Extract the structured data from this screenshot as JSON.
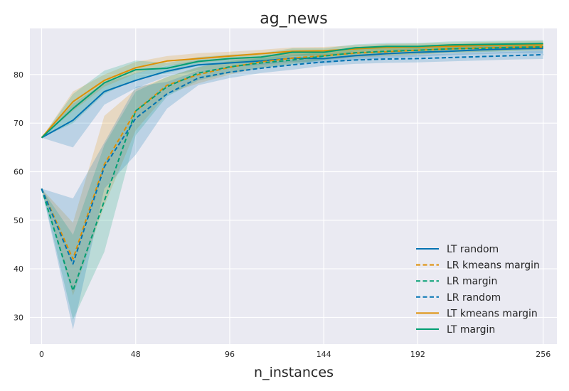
{
  "chart_data": {
    "type": "line",
    "title": "ag_news",
    "xlabel": "n_instances",
    "ylabel": "",
    "xlim": [
      -6,
      263
    ],
    "ylim": [
      24.5,
      89.5
    ],
    "xticks": [
      0,
      48,
      96,
      144,
      192,
      256
    ],
    "yticks": [
      30,
      40,
      50,
      60,
      70,
      80
    ],
    "grid": true,
    "legend_position": "lower-right",
    "x": [
      0,
      16,
      32,
      48,
      64,
      80,
      96,
      112,
      128,
      144,
      160,
      176,
      192,
      208,
      224,
      240,
      256
    ],
    "series": [
      {
        "name": "LT random",
        "color": "#0173b2",
        "dashed": false,
        "values": [
          67.0,
          70.6,
          76.5,
          78.8,
          80.7,
          82.0,
          82.4,
          82.8,
          83.4,
          83.3,
          83.9,
          84.3,
          84.6,
          84.8,
          85.1,
          85.3,
          85.4
        ],
        "band_low": [
          67.0,
          65.0,
          73.8,
          77.2,
          79.6,
          80.9,
          81.5,
          82.0,
          82.6,
          82.3,
          83.0,
          83.4,
          83.7,
          84.0,
          84.2,
          84.4,
          84.3
        ],
        "band_high": [
          67.0,
          74.0,
          78.3,
          80.3,
          81.8,
          83.0,
          83.3,
          83.7,
          84.3,
          84.2,
          84.8,
          85.1,
          85.4,
          85.6,
          85.9,
          86.1,
          86.3
        ]
      },
      {
        "name": "LR kmeans margin",
        "color": "#de8f05",
        "dashed": true,
        "values": [
          56.5,
          42.0,
          61.5,
          72.5,
          77.8,
          80.0,
          81.5,
          82.6,
          83.4,
          83.9,
          84.4,
          84.7,
          85.0,
          85.3,
          85.5,
          85.6,
          85.7
        ],
        "band_low": [
          56.5,
          34.5,
          53.0,
          68.5,
          76.0,
          78.2,
          80.0,
          81.4,
          82.3,
          83.0,
          83.5,
          83.8,
          84.1,
          84.5,
          84.7,
          84.9,
          85.0
        ],
        "band_high": [
          56.5,
          49.5,
          71.5,
          77.0,
          79.5,
          81.5,
          82.9,
          83.7,
          84.4,
          84.8,
          85.2,
          85.5,
          85.8,
          86.0,
          86.2,
          86.3,
          86.4
        ]
      },
      {
        "name": "LR margin",
        "color": "#029e73",
        "dashed": true,
        "values": [
          56.5,
          35.5,
          54.0,
          72.5,
          77.5,
          80.3,
          81.6,
          82.4,
          83.0,
          83.8,
          84.5,
          84.8,
          85.0,
          85.3,
          85.4,
          85.6,
          85.7
        ],
        "band_low": [
          56.5,
          29.5,
          43.5,
          67.5,
          75.5,
          78.8,
          80.3,
          81.3,
          82.0,
          83.0,
          83.7,
          84.0,
          84.2,
          84.5,
          84.6,
          84.8,
          85.0
        ],
        "band_high": [
          56.5,
          47.0,
          65.5,
          76.5,
          79.5,
          81.6,
          82.7,
          83.4,
          84.0,
          84.7,
          85.2,
          85.5,
          85.7,
          86.0,
          86.1,
          86.3,
          86.4
        ]
      },
      {
        "name": "LR random",
        "color": "#0173b2",
        "dashed": true,
        "values": [
          56.5,
          41.0,
          61.0,
          71.0,
          76.0,
          79.3,
          80.5,
          81.3,
          82.0,
          82.6,
          83.0,
          83.2,
          83.3,
          83.5,
          83.7,
          83.9,
          84.1
        ],
        "band_low": [
          56.5,
          27.5,
          56.5,
          63.5,
          73.0,
          77.8,
          79.3,
          80.3,
          81.0,
          81.8,
          82.2,
          82.4,
          82.5,
          82.7,
          82.9,
          83.1,
          83.2
        ],
        "band_high": [
          56.5,
          54.5,
          66.0,
          77.5,
          78.5,
          80.8,
          81.6,
          82.3,
          83.0,
          83.4,
          83.8,
          84.0,
          84.1,
          84.3,
          84.5,
          84.7,
          84.9
        ]
      },
      {
        "name": "LT kmeans margin",
        "color": "#de8f05",
        "dashed": false,
        "values": [
          67.0,
          74.4,
          78.8,
          81.4,
          82.8,
          83.3,
          83.8,
          84.3,
          84.8,
          84.9,
          85.3,
          85.6,
          85.7,
          85.8,
          86.0,
          86.1,
          86.1
        ],
        "band_low": [
          67.0,
          72.5,
          77.5,
          80.2,
          81.9,
          82.4,
          83.0,
          83.5,
          84.0,
          84.1,
          84.6,
          84.9,
          85.0,
          85.1,
          85.3,
          85.4,
          85.4
        ],
        "band_high": [
          67.0,
          76.5,
          80.0,
          82.6,
          83.8,
          84.4,
          84.7,
          85.1,
          85.6,
          85.7,
          86.0,
          86.3,
          86.4,
          86.5,
          86.7,
          86.8,
          86.9
        ]
      },
      {
        "name": "LT margin",
        "color": "#029e73",
        "dashed": false,
        "values": [
          67.0,
          73.0,
          78.3,
          81.0,
          81.3,
          82.7,
          83.3,
          83.6,
          84.6,
          84.6,
          85.5,
          85.8,
          85.8,
          86.1,
          86.2,
          86.3,
          86.4
        ],
        "band_low": [
          67.0,
          70.0,
          76.0,
          79.0,
          80.3,
          81.8,
          82.5,
          82.8,
          83.8,
          83.8,
          84.8,
          85.1,
          85.2,
          85.5,
          85.6,
          85.7,
          85.8
        ],
        "band_high": [
          67.0,
          76.0,
          80.8,
          82.9,
          82.4,
          83.6,
          84.1,
          84.4,
          85.4,
          85.4,
          86.2,
          86.5,
          86.5,
          86.8,
          86.9,
          87.0,
          87.1
        ]
      }
    ]
  }
}
